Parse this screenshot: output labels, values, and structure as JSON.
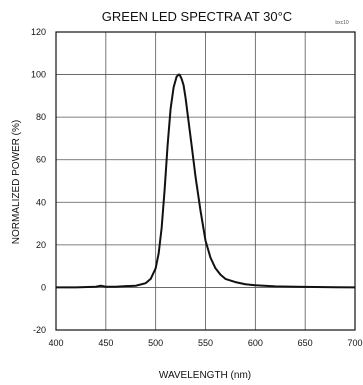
{
  "chart_data": {
    "type": "line",
    "title": "GREEN LED SPECTRA AT 30°C",
    "figure_code": "bxc10",
    "xlabel": "WAVELENGTH (nm)",
    "ylabel": "NORMALIZED POWER (%)",
    "xlim": [
      400,
      700
    ],
    "ylim": [
      -20,
      120
    ],
    "x_ticks": [
      400,
      450,
      500,
      550,
      600,
      650,
      700
    ],
    "y_ticks": [
      -20,
      0,
      20,
      40,
      60,
      80,
      100,
      120
    ],
    "grid": true,
    "series": [
      {
        "x": [
          400,
          420,
          440,
          445,
          450,
          460,
          470,
          480,
          490,
          495,
          500,
          503,
          506,
          509,
          512,
          515,
          518,
          521,
          523,
          524,
          526,
          528,
          530,
          533,
          536,
          540,
          545,
          550,
          555,
          560,
          565,
          570,
          580,
          590,
          600,
          620,
          640,
          660,
          680,
          700
        ],
        "y": [
          0,
          0,
          0.3,
          0.8,
          0.3,
          0.3,
          0.6,
          0.8,
          2,
          4,
          9,
          16,
          28,
          46,
          67,
          84,
          94,
          99,
          100,
          100,
          98,
          95,
          89,
          78,
          67,
          52,
          36,
          22,
          14,
          9,
          6,
          4,
          2.5,
          1.5,
          1,
          0.5,
          0.3,
          0.2,
          0.1,
          0
        ]
      }
    ],
    "colors": {
      "line": "#111111",
      "grid": "#555555",
      "axis": "#111111"
    }
  }
}
